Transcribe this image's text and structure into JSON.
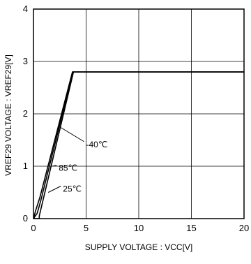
{
  "chart_data": {
    "type": "line",
    "xlabel": "SUPPLY VOLTAGE : VCC[V]",
    "ylabel": "VREF29 VOLTAGE : VREF29[V]",
    "xlim": [
      0,
      20
    ],
    "ylim": [
      0,
      4
    ],
    "x_ticks": [
      0,
      5,
      10,
      15,
      20
    ],
    "y_ticks": [
      0,
      1,
      2,
      3,
      4
    ],
    "x_tick_labels": [
      "0",
      "5",
      "10",
      "15",
      "20"
    ],
    "y_tick_labels": [
      "0",
      "1",
      "2",
      "3",
      "4"
    ],
    "grid": true,
    "series": [
      {
        "name": "-40℃",
        "points": [
          [
            0,
            0
          ],
          [
            0.55,
            0
          ],
          [
            0.55,
            0.05
          ],
          [
            3.8,
            2.8
          ],
          [
            20,
            2.8
          ]
        ]
      },
      {
        "name": "85℃",
        "points": [
          [
            0,
            0
          ],
          [
            0.2,
            0.15
          ],
          [
            0.6,
            0.4
          ],
          [
            3.7,
            2.8
          ],
          [
            20,
            2.8
          ]
        ]
      },
      {
        "name": "25℃",
        "points": [
          [
            0,
            0
          ],
          [
            0.35,
            0.1
          ],
          [
            0.7,
            0.35
          ],
          [
            3.75,
            2.8
          ],
          [
            20,
            2.8
          ]
        ]
      }
    ],
    "annotations": [
      {
        "text": "-40℃",
        "x": 5.0,
        "y": 1.43,
        "series": "-40℃",
        "tx": 2.5,
        "ty": 1.75
      },
      {
        "text": "85℃",
        "x": 2.4,
        "y": 0.98,
        "series": "85℃",
        "tx": 1.8,
        "ty": 1.0
      },
      {
        "text": "25℃",
        "x": 2.8,
        "y": 0.58,
        "series": "25℃",
        "tx": 1.4,
        "ty": 0.5
      }
    ]
  }
}
